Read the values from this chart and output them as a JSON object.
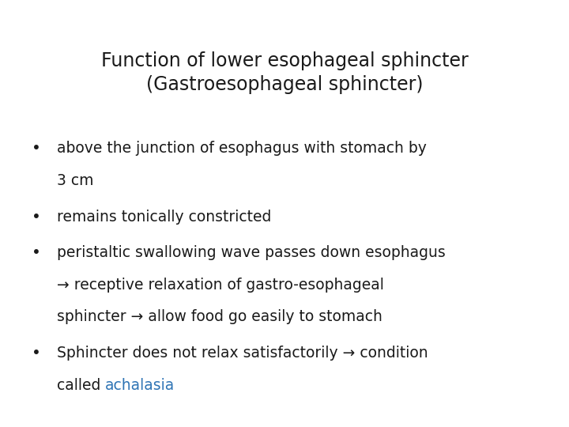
{
  "background_color": "#ffffff",
  "title_line1": "Function of lower esophageal sphincter",
  "title_line2": "(Gastroesophageal sphincter)",
  "title_fontsize": 17,
  "title_color": "#1a1a1a",
  "bullet_color": "#1a1a1a",
  "bullet_fontsize": 13.5,
  "achalasia_color": "#2e74b5",
  "fig_width": 7.2,
  "fig_height": 5.4,
  "fig_dpi": 100,
  "bullets": [
    {
      "lines": [
        "above the junction of esophagus with stomach by",
        "3 cm"
      ],
      "highlight": null
    },
    {
      "lines": [
        "remains tonically constricted"
      ],
      "highlight": null
    },
    {
      "lines": [
        "peristaltic swallowing wave passes down esophagus",
        "→ receptive relaxation of gastro-esophageal",
        "sphincter → allow food go easily to stomach"
      ],
      "highlight": null
    },
    {
      "lines": [
        "Sphincter does not relax satisfactorily → condition",
        "called achalasia"
      ],
      "highlight": "achalasia"
    }
  ]
}
